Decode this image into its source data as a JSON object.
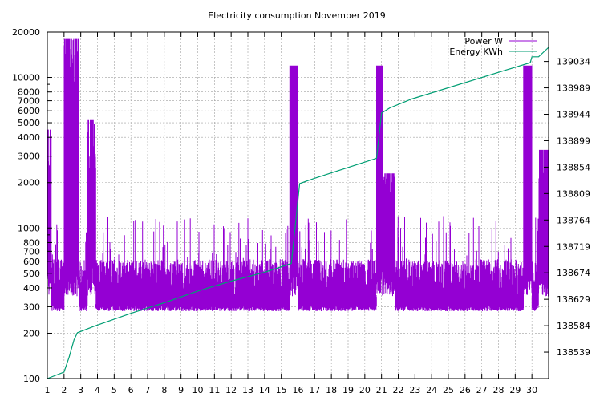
{
  "chart_data": {
    "type": "line",
    "title": "Electricity consumption November 2019",
    "xlabel": "",
    "ylabel": "",
    "x_ticks": [
      "1",
      "2",
      "3",
      "4",
      "5",
      "6",
      "7",
      "8",
      "9",
      "10",
      "11",
      "12",
      "13",
      "14",
      "15",
      "16",
      "17",
      "18",
      "19",
      "20",
      "21",
      "22",
      "23",
      "24",
      "25",
      "26",
      "27",
      "28",
      "29",
      "30"
    ],
    "xlim": [
      1,
      31
    ],
    "y_left": {
      "scale": "log",
      "lim": [
        100,
        20000
      ],
      "ticks": [
        100,
        200,
        300,
        400,
        500,
        600,
        700,
        800,
        1000,
        2000,
        3000,
        4000,
        5000,
        6000,
        7000,
        8000,
        10000,
        20000
      ]
    },
    "y_right": {
      "scale": "linear",
      "lim": [
        138494,
        139084
      ],
      "ticks": [
        138539,
        138584,
        138629,
        138674,
        138719,
        138764,
        138809,
        138854,
        138899,
        138944,
        138989,
        139034
      ]
    },
    "grid": true,
    "legend_position": "top-right",
    "series": [
      {
        "name": "Power W",
        "axis": "left",
        "color": "#9400d3",
        "style": "impulses",
        "high_activity_periods": [
          {
            "start": 1.0,
            "end": 1.25,
            "peak": 4500
          },
          {
            "start": 2.0,
            "end": 2.9,
            "peak": 18000
          },
          {
            "start": 3.4,
            "end": 3.9,
            "peak": 5200
          },
          {
            "start": 15.5,
            "end": 16.0,
            "peak": 12000
          },
          {
            "start": 20.7,
            "end": 21.1,
            "peak": 12000
          },
          {
            "start": 21.1,
            "end": 21.8,
            "peak": 2300
          },
          {
            "start": 29.5,
            "end": 30.0,
            "peak": 12000
          },
          {
            "start": 30.4,
            "end": 31.0,
            "peak": 3300
          }
        ],
        "baseline_range": [
          280,
          600
        ]
      },
      {
        "name": "Energy KWh",
        "axis": "right",
        "color": "#009e73",
        "x": [
          1.0,
          2.0,
          2.3,
          2.6,
          2.8,
          3.8,
          6.0,
          8.0,
          10.0,
          12.0,
          14.0,
          15.6,
          16.1,
          17.0,
          20.7,
          21.0,
          21.5,
          22.8,
          29.9,
          30.0,
          30.4,
          31.0
        ],
        "values": [
          138494,
          138505,
          138530,
          138560,
          138572,
          138583,
          138605,
          138623,
          138643,
          138660,
          138675,
          138690,
          138826,
          138835,
          138869,
          138946,
          138955,
          138970,
          139032,
          139042,
          139042,
          139058
        ]
      }
    ]
  }
}
